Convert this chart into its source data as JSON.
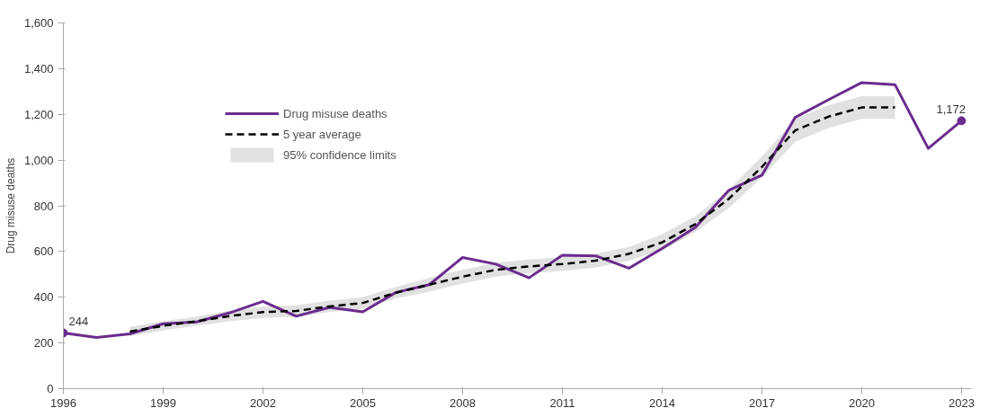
{
  "chart_data": {
    "type": "line",
    "ylabel": "Drug misuse deaths",
    "xlim": [
      1996,
      2023.3
    ],
    "xticks": [
      1996,
      1999,
      2002,
      2005,
      2008,
      2011,
      2014,
      2017,
      2020,
      2023
    ],
    "ylim": [
      0,
      1600
    ],
    "yticks": [
      {
        "value": 0,
        "label": "0"
      },
      {
        "value": 200,
        "label": "200"
      },
      {
        "value": 400,
        "label": "400"
      },
      {
        "value": 600,
        "label": "600"
      },
      {
        "value": 800,
        "label": "800"
      },
      {
        "value": 1000,
        "label": "1,000"
      },
      {
        "value": 1200,
        "label": "1,200"
      },
      {
        "value": 1400,
        "label": "1,400"
      },
      {
        "value": 1600,
        "label": "1,600"
      }
    ],
    "grid": false,
    "legend": "top left",
    "series": [
      {
        "name": "Drug misuse deaths",
        "color": "#6a2c8e",
        "line_style": "solid",
        "x": [
          1996,
          1997,
          1998,
          1999,
          2000,
          2001,
          2002,
          2003,
          2004,
          2005,
          2006,
          2007,
          2008,
          2009,
          2010,
          2011,
          2012,
          2013,
          2014,
          2015,
          2016,
          2017,
          2018,
          2019,
          2020,
          2021,
          2022,
          2023
        ],
        "values": [
          244,
          224,
          240,
          284,
          292,
          332,
          382,
          317,
          356,
          336,
          421,
          455,
          574,
          545,
          485,
          584,
          581,
          527,
          613,
          706,
          867,
          934,
          1187,
          1264,
          1339,
          1330,
          1051,
          1172
        ],
        "value_labels": [
          "244",
          null,
          null,
          null,
          null,
          null,
          null,
          null,
          null,
          null,
          null,
          null,
          null,
          null,
          null,
          null,
          null,
          null,
          null,
          null,
          null,
          null,
          null,
          null,
          null,
          null,
          null,
          "1,172"
        ]
      },
      {
        "name": "5 year average",
        "color": "#000000",
        "line_style": "dashed",
        "x": [
          1998,
          1999,
          2000,
          2001,
          2002,
          2003,
          2004,
          2005,
          2006,
          2007,
          2008,
          2009,
          2010,
          2011,
          2012,
          2013,
          2014,
          2015,
          2016,
          2017,
          2018,
          2019,
          2020,
          2021
        ],
        "values": [
          250,
          275,
          295,
          318,
          335,
          340,
          360,
          375,
          420,
          455,
          490,
          520,
          535,
          545,
          560,
          590,
          640,
          720,
          830,
          970,
          1130,
          1190,
          1230,
          1230
        ]
      },
      {
        "name": "95% confidence limits",
        "type": "area",
        "color": "#d9d9d9",
        "x": [
          1998,
          1999,
          2000,
          2001,
          2002,
          2003,
          2004,
          2005,
          2006,
          2007,
          2008,
          2009,
          2010,
          2011,
          2012,
          2013,
          2014,
          2015,
          2016,
          2017,
          2018,
          2019,
          2020,
          2021
        ],
        "values": [
          null,
          null,
          null,
          null,
          null,
          null,
          null,
          null,
          null,
          null,
          null,
          null,
          null,
          null,
          null,
          null,
          null,
          null,
          null,
          null,
          null,
          null,
          null,
          null
        ],
        "lower": [
          230,
          255,
          275,
          295,
          310,
          315,
          335,
          350,
          395,
          425,
          460,
          490,
          505,
          515,
          530,
          560,
          605,
          685,
          790,
          925,
          1080,
          1140,
          1180,
          1180
        ],
        "upper": [
          270,
          295,
          315,
          341,
          360,
          365,
          385,
          400,
          445,
          485,
          520,
          550,
          565,
          575,
          590,
          620,
          675,
          755,
          870,
          1015,
          1180,
          1240,
          1280,
          1280
        ]
      }
    ]
  }
}
